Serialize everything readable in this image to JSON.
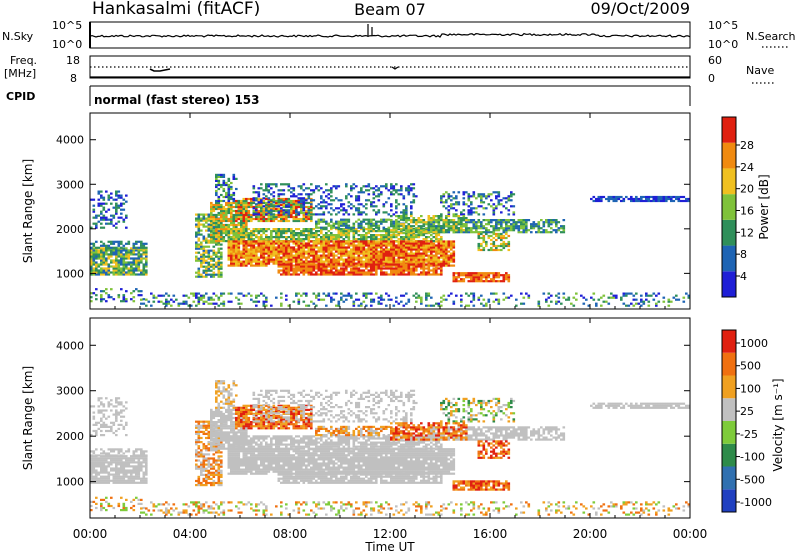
{
  "header": {
    "station": "Hankasalmi (fitACF)",
    "beam": "Beam 07",
    "date": "09/Oct/2009"
  },
  "top_panels": {
    "nsky_label": "N.Sky",
    "nsearch_label": "N.Search",
    "nsky_scale_top": "10^5",
    "nsky_scale_bottom": "10^0",
    "freq_label_1": "Freq.",
    "freq_label_2": "[MHz]",
    "freq_top": "18",
    "freq_bottom": "8",
    "nave_label": "Nave",
    "nave_top": "60",
    "nave_bottom": "0",
    "cpid_label": "CPID",
    "cpid_text": "normal (fast stereo) 153"
  },
  "chart_data": [
    {
      "type": "heatmap",
      "name": "power",
      "ylabel": "Slant Range [km]",
      "ylim": [
        200,
        4600
      ],
      "yticks": [
        1000,
        2000,
        3000,
        4000
      ],
      "colorbar_label": "Power [dB]",
      "colorbar_ticks": [
        "4",
        "8",
        "12",
        "16",
        "20",
        "24",
        "28"
      ],
      "colors": [
        "#1f1fd6",
        "#1e64b4",
        "#2f8f5a",
        "#7fc23a",
        "#f0c020",
        "#f08a10",
        "#e02010"
      ]
    },
    {
      "type": "heatmap",
      "name": "velocity",
      "ylabel": "Slant Range [km]",
      "ylim": [
        200,
        4600
      ],
      "yticks": [
        1000,
        2000,
        3000,
        4000
      ],
      "colorbar_label": "Velocity [m s⁻¹]",
      "colorbar_ticks": [
        "1000",
        "500",
        "100",
        "25",
        "-25",
        "-100",
        "-500",
        "-1000"
      ],
      "colors": [
        "#2040c0",
        "#3070b0",
        "#2e8b4a",
        "#7ecb3a",
        "#c0c0c0",
        "#f0a020",
        "#f07010",
        "#e02010"
      ]
    }
  ],
  "x_axis": {
    "label": "Time UT",
    "ticks": [
      "00:00",
      "04:00",
      "08:00",
      "12:00",
      "16:00",
      "20:00",
      "00:00"
    ]
  }
}
